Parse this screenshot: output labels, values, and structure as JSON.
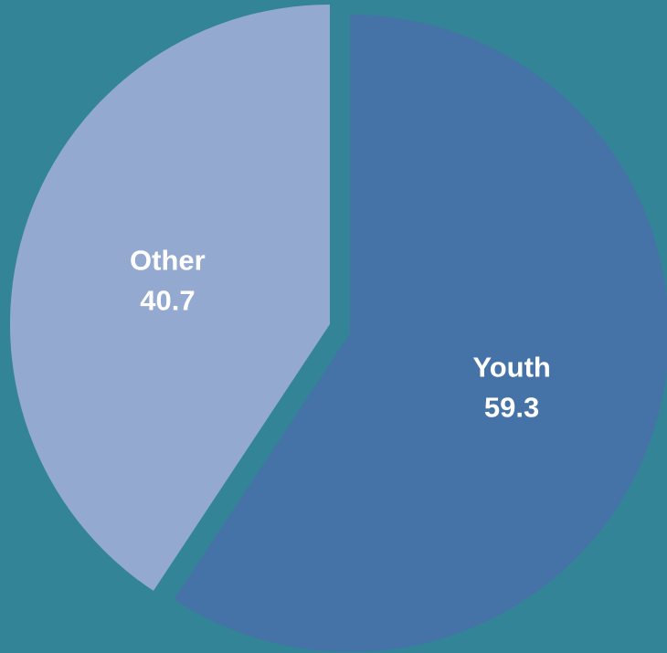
{
  "chart_data": {
    "type": "pie",
    "title": "",
    "slices": [
      {
        "label": "Youth",
        "value": 59.3,
        "value_label": "59.3",
        "color": "#4572a7"
      },
      {
        "label": "Other",
        "value": 40.7,
        "value_label": "40.7",
        "color": "#93a9cf"
      }
    ],
    "start": "12 o'clock",
    "direction": "clockwise",
    "exploded": "Youth",
    "legend": "none",
    "background": "#338497"
  }
}
